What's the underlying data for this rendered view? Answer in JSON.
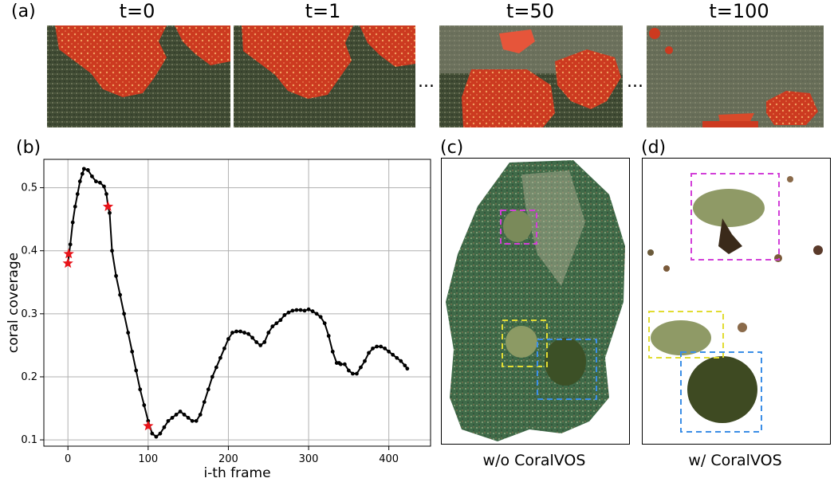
{
  "panels": {
    "a": {
      "letter": "(a)"
    },
    "b": {
      "letter": "(b)"
    },
    "c": {
      "letter": "(c)",
      "caption": "w/o CoralVOS"
    },
    "d": {
      "letter": "(d)",
      "caption": "w/ CoralVOS"
    }
  },
  "frames": [
    {
      "label": "t=0"
    },
    {
      "label": "t=1"
    },
    {
      "label": "t=50"
    },
    {
      "label": "t=100"
    }
  ],
  "ellipsis": "...",
  "colors": {
    "coral_red": "#c8321c",
    "reef_dark": "#3a4a30",
    "line": "#000000",
    "star": "#e8141a",
    "box_magenta": "#d23fd8",
    "box_yellow": "#e1dc32",
    "box_blue": "#3b8ee6"
  },
  "chart_data": {
    "type": "line",
    "title": "",
    "xlabel": "i-th frame",
    "ylabel": "coral coverage",
    "xlim": [
      -30,
      452
    ],
    "ylim": [
      0.09,
      0.545
    ],
    "xticks": [
      0,
      100,
      200,
      300,
      400
    ],
    "yticks": [
      0.1,
      0.2,
      0.3,
      0.4,
      0.5
    ],
    "grid": true,
    "series": [
      {
        "x": [
          0,
          3,
          6,
          9,
          12,
          15,
          18,
          20,
          25,
          30,
          35,
          40,
          45,
          48,
          50,
          52,
          55,
          60,
          65,
          70,
          75,
          80,
          85,
          90,
          95,
          100,
          105,
          110,
          115,
          120,
          125,
          130,
          135,
          140,
          145,
          150,
          155,
          160,
          165,
          170,
          175,
          180,
          185,
          190,
          195,
          200,
          205,
          210,
          215,
          220,
          225,
          230,
          235,
          240,
          245,
          250,
          255,
          260,
          265,
          270,
          275,
          280,
          285,
          290,
          295,
          300,
          305,
          310,
          315,
          320,
          325,
          330,
          335,
          338,
          340,
          345,
          350,
          355,
          360,
          365,
          370,
          375,
          380,
          385,
          390,
          395,
          400,
          405,
          410,
          415,
          420,
          423
        ],
        "y": [
          0.38,
          0.41,
          0.445,
          0.47,
          0.49,
          0.51,
          0.522,
          0.53,
          0.528,
          0.518,
          0.51,
          0.508,
          0.502,
          0.49,
          0.47,
          0.46,
          0.4,
          0.36,
          0.33,
          0.3,
          0.27,
          0.24,
          0.21,
          0.18,
          0.155,
          0.13,
          0.11,
          0.105,
          0.11,
          0.12,
          0.13,
          0.135,
          0.14,
          0.145,
          0.14,
          0.135,
          0.13,
          0.13,
          0.14,
          0.16,
          0.18,
          0.2,
          0.215,
          0.23,
          0.245,
          0.26,
          0.27,
          0.272,
          0.272,
          0.27,
          0.268,
          0.262,
          0.255,
          0.25,
          0.255,
          0.27,
          0.28,
          0.285,
          0.29,
          0.298,
          0.302,
          0.305,
          0.306,
          0.306,
          0.305,
          0.307,
          0.304,
          0.3,
          0.295,
          0.285,
          0.265,
          0.24,
          0.222,
          0.222,
          0.22,
          0.22,
          0.21,
          0.205,
          0.205,
          0.215,
          0.225,
          0.238,
          0.245,
          0.248,
          0.248,
          0.245,
          0.24,
          0.235,
          0.23,
          0.225,
          0.218,
          0.213
        ]
      }
    ],
    "markers": {
      "x": [
        0,
        1,
        50,
        100
      ],
      "y": [
        0.38,
        0.395,
        0.47,
        0.122
      ]
    }
  }
}
